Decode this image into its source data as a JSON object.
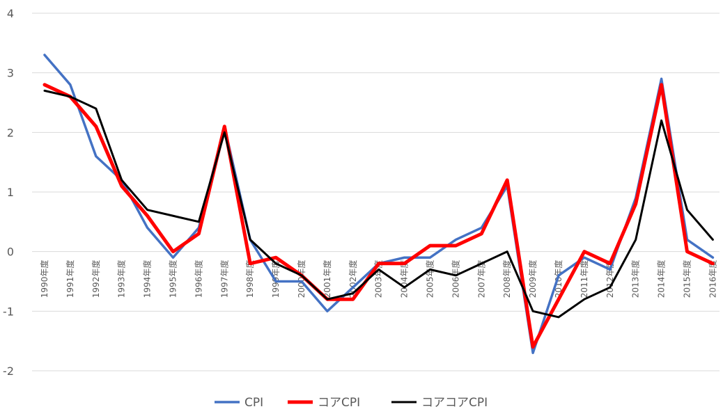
{
  "chart_data": {
    "type": "line",
    "title": "",
    "xlabel": "",
    "ylabel": "",
    "ylim": [
      -2,
      4
    ],
    "yticks": [
      "4",
      "3",
      "2",
      "1",
      "0",
      "-1",
      "-2"
    ],
    "grid": true,
    "legend_position": "bottom",
    "categories": [
      "1990年度",
      "1991年度",
      "1992年度",
      "1993年度",
      "1994年度",
      "1995年度",
      "1996年度",
      "1997年度",
      "1998年度",
      "1999年度",
      "2000年度",
      "2001年度",
      "2002年度",
      "2003年度",
      "2004年度",
      "2005年度",
      "2006年度",
      "2007年度",
      "2008年度",
      "2009年度",
      "2010年度",
      "2011年度",
      "2012年度",
      "2013年度",
      "2014年度",
      "2015年度",
      "2016年度"
    ],
    "series": [
      {
        "name": "CPI",
        "color": "#4472c4",
        "width": 3.5,
        "values": [
          3.3,
          2.8,
          1.6,
          1.2,
          0.4,
          -0.1,
          0.4,
          2.1,
          0.2,
          -0.5,
          -0.5,
          -1.0,
          -0.6,
          -0.2,
          -0.1,
          -0.1,
          0.2,
          0.4,
          1.1,
          -1.7,
          -0.4,
          -0.1,
          -0.3,
          0.9,
          2.9,
          0.2,
          -0.1
        ]
      },
      {
        "name": "コアCPI",
        "color": "#ff0000",
        "width": 5,
        "values": [
          2.8,
          2.6,
          2.1,
          1.1,
          0.6,
          0.0,
          0.3,
          2.1,
          -0.2,
          -0.1,
          -0.4,
          -0.8,
          -0.8,
          -0.2,
          -0.2,
          0.1,
          0.1,
          0.3,
          1.2,
          -1.6,
          -0.8,
          0.0,
          -0.2,
          0.8,
          2.8,
          0.0,
          -0.2
        ]
      },
      {
        "name": "コアコアCPI",
        "color": "#000000",
        "width": 3,
        "values": [
          2.7,
          2.6,
          2.4,
          1.2,
          0.7,
          0.6,
          0.5,
          2.0,
          0.2,
          -0.2,
          -0.4,
          -0.8,
          -0.7,
          -0.3,
          -0.6,
          -0.3,
          -0.4,
          -0.2,
          0.0,
          -1.0,
          -1.1,
          -0.8,
          -0.6,
          0.2,
          2.2,
          0.7,
          0.2
        ]
      }
    ]
  }
}
